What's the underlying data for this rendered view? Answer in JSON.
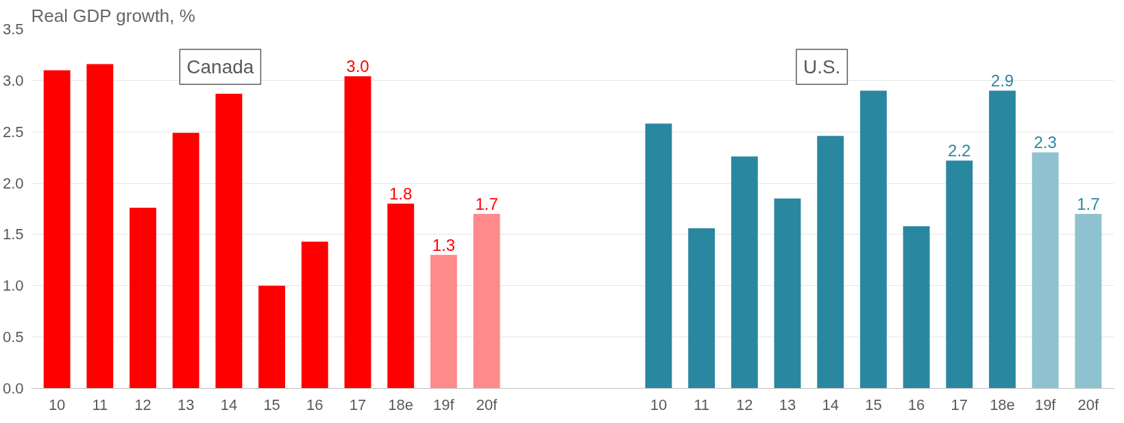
{
  "chart_data": {
    "type": "bar",
    "title": "Real GDP growth, %",
    "categories": [
      "10",
      "11",
      "12",
      "13",
      "14",
      "15",
      "16",
      "17",
      "18e",
      "19f",
      "20f",
      null,
      null,
      null,
      "10",
      "11",
      "12",
      "13",
      "14",
      "15",
      "16",
      "17",
      "18e",
      "19f",
      "20f"
    ],
    "series": [
      {
        "name": "Canada",
        "color": "#ff0000",
        "colors": [
          "#ff0000",
          "#ff0000",
          "#ff0000",
          "#ff0000",
          "#ff0000",
          "#ff0000",
          "#ff0000",
          "#ff0000",
          "#ff0000",
          "#ff8a8a",
          "#ff8a8a",
          null,
          null,
          null,
          null,
          null,
          null,
          null,
          null,
          null,
          null,
          null,
          null,
          null,
          null
        ],
        "values": [
          3.1,
          3.16,
          1.76,
          2.49,
          2.87,
          1.0,
          1.43,
          3.04,
          1.8,
          1.3,
          1.7,
          null,
          null,
          null,
          null,
          null,
          null,
          null,
          null,
          null,
          null,
          null,
          null,
          null,
          null
        ],
        "value_labels": [
          null,
          null,
          null,
          null,
          null,
          null,
          null,
          "3.0",
          "1.8",
          "1.3",
          "1.7",
          null,
          null,
          null,
          null,
          null,
          null,
          null,
          null,
          null,
          null,
          null,
          null,
          null,
          null
        ]
      },
      {
        "name": "U.S.",
        "color": "#2a87a0",
        "colors": [
          null,
          null,
          null,
          null,
          null,
          null,
          null,
          null,
          null,
          null,
          null,
          null,
          null,
          null,
          "#2a87a0",
          "#2a87a0",
          "#2a87a0",
          "#2a87a0",
          "#2a87a0",
          "#2a87a0",
          "#2a87a0",
          "#2a87a0",
          "#2a87a0",
          "#8fc2d0",
          "#8fc2d0"
        ],
        "values": [
          null,
          null,
          null,
          null,
          null,
          null,
          null,
          null,
          null,
          null,
          null,
          null,
          null,
          null,
          2.58,
          1.56,
          2.26,
          1.85,
          2.46,
          2.9,
          1.58,
          2.22,
          2.9,
          2.3,
          1.7
        ],
        "value_labels": [
          null,
          null,
          null,
          null,
          null,
          null,
          null,
          null,
          null,
          null,
          null,
          null,
          null,
          null,
          null,
          null,
          null,
          null,
          null,
          null,
          null,
          "2.2",
          "2.9",
          "2.3",
          "1.7"
        ]
      }
    ],
    "ylim": [
      0,
      3.5
    ],
    "yticks": [
      {
        "value": 0,
        "label": "0.0"
      },
      {
        "value": 0.5,
        "label": "0.5"
      },
      {
        "value": 1,
        "label": "1.0"
      },
      {
        "value": 1.5,
        "label": "1.5"
      },
      {
        "value": 2,
        "label": "2.0"
      },
      {
        "value": 2.5,
        "label": "2.5"
      },
      {
        "value": 3,
        "label": "3.0"
      },
      {
        "value": 3.5,
        "label": "3.5"
      }
    ],
    "grid": "y"
  }
}
